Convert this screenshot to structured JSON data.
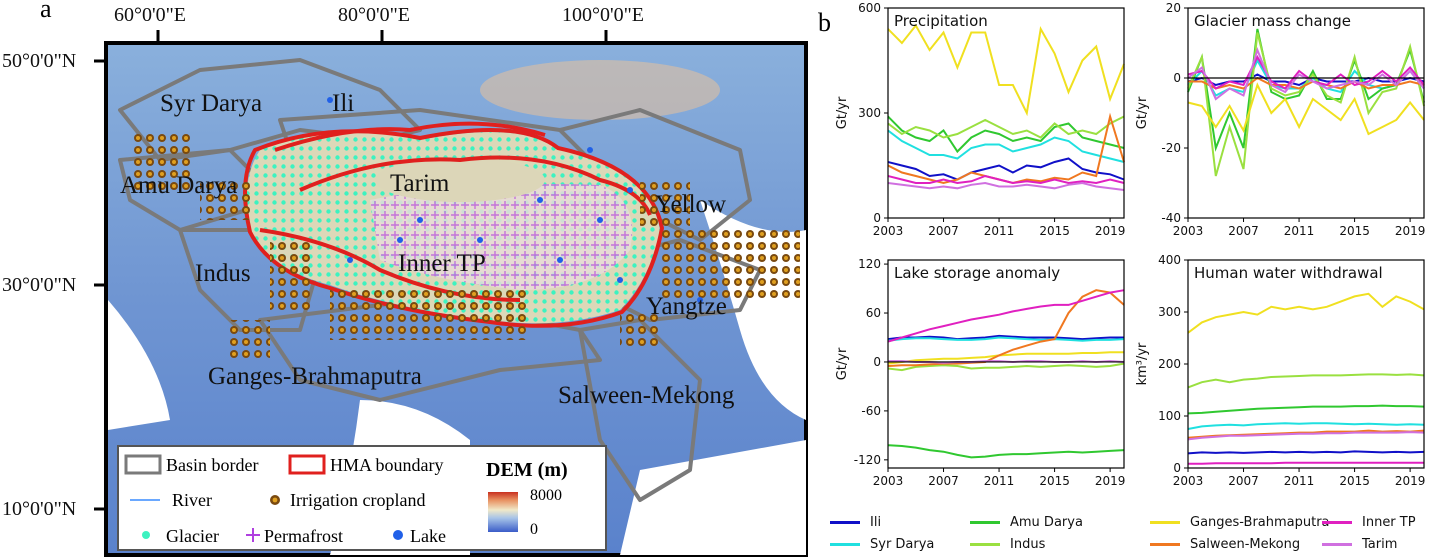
{
  "panel_labels": {
    "a": "a",
    "b": "b"
  },
  "map": {
    "lon_labels": [
      "60°0'0\"E",
      "80°0'0\"E",
      "100°0'0\"E"
    ],
    "lat_labels": [
      "50°0'0\"N",
      "30°0'0\"N",
      "10°0'0\"N"
    ],
    "basin_labels": [
      "Syr Darya",
      "Ili",
      "Amu Darya",
      "Tarim",
      "Yellow",
      "Indus",
      "Inner TP",
      "Yangtze",
      "Ganges-Brahmaputra",
      "Salween-Mekong"
    ],
    "legend": {
      "basin_border": "Basin border",
      "hma_boundary": "HMA boundary",
      "dem_title": "DEM (m)",
      "river": "River",
      "irrigation": "Irrigation cropland",
      "glacier": "Glacier",
      "permafrost": "Permafrost",
      "lake": "Lake",
      "dem_max": "8000",
      "dem_min": "0"
    },
    "colors": {
      "hma_boundary": "#e0201e",
      "basin_border": "#7a7a7a",
      "glacier": "#3df2c0",
      "permafrost": "#b040e0",
      "lake": "#2060e8",
      "river": "#6aa8ff"
    }
  },
  "series_colors": {
    "Ili": "#1010c8",
    "Syr Darya": "#20e0e0",
    "Amu Darya": "#30c830",
    "Indus": "#9ae040",
    "Ganges-Brahmaputra": "#f0e020",
    "Salween-Mekong": "#f07820",
    "Inner TP": "#e020c0",
    "Tarim": "#d070e0"
  },
  "legend_order": [
    "Ili",
    "Amu Darya",
    "Ganges-Brahmaputra",
    "Inner TP",
    "Syr Darya",
    "Indus",
    "Salween-Mekong",
    "Tarim"
  ],
  "chart_data": [
    {
      "type": "line",
      "title": "Precipitation",
      "ylabel": "Gt/yr",
      "ylim": [
        0,
        600
      ],
      "yticks": [
        0,
        300,
        600
      ],
      "xlim": [
        2003,
        2020
      ],
      "xticks": [
        2003,
        2007,
        2011,
        2015,
        2019
      ],
      "x": [
        2003,
        2004,
        2005,
        2006,
        2007,
        2008,
        2009,
        2010,
        2011,
        2012,
        2013,
        2014,
        2015,
        2016,
        2017,
        2018,
        2019,
        2020
      ],
      "series": [
        {
          "name": "Ili",
          "values": [
            160,
            150,
            140,
            120,
            125,
            110,
            130,
            140,
            150,
            130,
            150,
            145,
            160,
            170,
            140,
            130,
            125,
            110
          ]
        },
        {
          "name": "Syr Darya",
          "values": [
            250,
            220,
            200,
            180,
            180,
            170,
            200,
            210,
            210,
            190,
            200,
            210,
            230,
            220,
            190,
            180,
            170,
            160
          ]
        },
        {
          "name": "Amu Darya",
          "values": [
            290,
            250,
            230,
            220,
            250,
            190,
            230,
            250,
            240,
            220,
            230,
            220,
            260,
            270,
            230,
            220,
            210,
            200
          ]
        },
        {
          "name": "Indus",
          "values": [
            270,
            240,
            260,
            250,
            230,
            240,
            260,
            280,
            260,
            240,
            250,
            230,
            270,
            240,
            250,
            240,
            270,
            290
          ]
        },
        {
          "name": "Ganges-Brahmaputra",
          "values": [
            540,
            500,
            550,
            480,
            530,
            430,
            530,
            530,
            380,
            380,
            300,
            540,
            470,
            360,
            450,
            490,
            340,
            440
          ]
        },
        {
          "name": "Salween-Mekong",
          "values": [
            150,
            130,
            120,
            110,
            100,
            110,
            130,
            120,
            110,
            100,
            110,
            105,
            115,
            110,
            130,
            120,
            290,
            160
          ]
        },
        {
          "name": "Inner TP",
          "values": [
            120,
            110,
            100,
            100,
            110,
            100,
            105,
            120,
            110,
            100,
            105,
            100,
            110,
            100,
            105,
            100,
            110,
            100
          ]
        },
        {
          "name": "Tarim",
          "values": [
            100,
            95,
            90,
            85,
            90,
            85,
            95,
            100,
            90,
            90,
            95,
            90,
            85,
            95,
            100,
            90,
            85,
            80
          ]
        }
      ]
    },
    {
      "type": "line",
      "title": "Glacier mass change",
      "ylabel": "Gt/yr",
      "ylim": [
        -40,
        20
      ],
      "yticks": [
        -40,
        -20,
        0,
        20
      ],
      "xlim": [
        2003,
        2020
      ],
      "xticks": [
        2003,
        2007,
        2011,
        2015,
        2019
      ],
      "x": [
        2003,
        2004,
        2005,
        2006,
        2007,
        2008,
        2009,
        2010,
        2011,
        2012,
        2013,
        2014,
        2015,
        2016,
        2017,
        2018,
        2019,
        2020
      ],
      "series": [
        {
          "name": "Ili",
          "values": [
            -1,
            0,
            -2,
            -1,
            -1,
            1,
            -1,
            -1,
            -2,
            0,
            -1,
            -1,
            -1,
            0,
            -1,
            -1,
            0,
            -1
          ]
        },
        {
          "name": "Syr Darya",
          "values": [
            -2,
            2,
            -5,
            -3,
            -4,
            5,
            -2,
            -3,
            -3,
            0,
            -3,
            -4,
            2,
            -2,
            -3,
            -2,
            2,
            -3
          ]
        },
        {
          "name": "Amu Darya",
          "values": [
            -4,
            6,
            -20,
            -10,
            -20,
            14,
            -4,
            -6,
            -5,
            2,
            -6,
            -6,
            5,
            -6,
            -3,
            -2,
            8,
            -7
          ]
        },
        {
          "name": "Indus",
          "values": [
            -3,
            6,
            -28,
            -14,
            -26,
            13,
            -3,
            -5,
            -4,
            1,
            -5,
            -7,
            6,
            -10,
            -4,
            -3,
            9,
            -8
          ]
        },
        {
          "name": "Ganges-Brahmaputra",
          "values": [
            -7,
            -8,
            -14,
            -8,
            -15,
            -2,
            -10,
            -6,
            -14,
            -6,
            -9,
            -12,
            -6,
            -16,
            -14,
            -12,
            -7,
            -12
          ]
        },
        {
          "name": "Salween-Mekong",
          "values": [
            -1,
            -1,
            -3,
            -2,
            -3,
            0,
            -2,
            -2,
            -3,
            -1,
            -2,
            -3,
            -1,
            -3,
            -2,
            -2,
            -1,
            -2
          ]
        },
        {
          "name": "Inner TP",
          "values": [
            1,
            2,
            -3,
            -1,
            -2,
            6,
            -1,
            -3,
            2,
            -1,
            -2,
            1,
            -2,
            -1,
            2,
            -1,
            3,
            -2
          ]
        },
        {
          "name": "Tarim",
          "values": [
            0,
            3,
            -6,
            -3,
            -5,
            8,
            -2,
            -4,
            1,
            -1,
            -3,
            -2,
            -1,
            -2,
            1,
            -2,
            2,
            -3
          ]
        }
      ]
    },
    {
      "type": "line",
      "title": "Lake storage anomaly",
      "ylabel": "Gt/yr",
      "ylim": [
        -130,
        125
      ],
      "yticks": [
        -120,
        -60,
        0,
        60,
        120
      ],
      "xlim": [
        2003,
        2020
      ],
      "xticks": [
        2003,
        2007,
        2011,
        2015,
        2019
      ],
      "x": [
        2003,
        2004,
        2005,
        2006,
        2007,
        2008,
        2009,
        2010,
        2011,
        2012,
        2013,
        2014,
        2015,
        2016,
        2017,
        2018,
        2019,
        2020
      ],
      "series": [
        {
          "name": "Ili",
          "values": [
            28,
            30,
            30,
            31,
            30,
            28,
            29,
            30,
            32,
            31,
            30,
            30,
            30,
            29,
            28,
            29,
            30,
            30
          ]
        },
        {
          "name": "Syr Darya",
          "values": [
            26,
            28,
            29,
            29,
            28,
            27,
            27,
            28,
            30,
            29,
            28,
            27,
            28,
            27,
            26,
            27,
            27,
            28
          ]
        },
        {
          "name": "Amu Darya",
          "values": [
            -102,
            -103,
            -105,
            -108,
            -110,
            -114,
            -117,
            -116,
            -114,
            -113,
            -113,
            -112,
            -111,
            -110,
            -111,
            -110,
            -109,
            -108
          ]
        },
        {
          "name": "Indus",
          "values": [
            -8,
            -10,
            -6,
            -5,
            -4,
            -5,
            -8,
            -7,
            -7,
            -6,
            -5,
            -6,
            -5,
            -4,
            -5,
            -6,
            -5,
            -2
          ]
        },
        {
          "name": "Ganges-Brahmaputra",
          "values": [
            -2,
            0,
            2,
            3,
            4,
            4,
            5,
            6,
            8,
            9,
            10,
            10,
            10,
            10,
            11,
            11,
            12,
            12
          ]
        },
        {
          "name": "Salween-Mekong",
          "values": [
            -5,
            -4,
            -4,
            -3,
            -2,
            -2,
            -1,
            0,
            8,
            15,
            20,
            25,
            28,
            60,
            80,
            88,
            85,
            70
          ]
        },
        {
          "name": "Inner TP",
          "values": [
            25,
            30,
            35,
            40,
            44,
            48,
            52,
            55,
            58,
            62,
            65,
            68,
            70,
            70,
            75,
            80,
            85,
            88
          ]
        },
        {
          "name": "Tarim",
          "values": [
            1,
            1,
            0,
            0,
            -1,
            0,
            0,
            1,
            1,
            0,
            1,
            1,
            0,
            0,
            1,
            0,
            1,
            0
          ]
        }
      ]
    },
    {
      "type": "line",
      "title": "Human water withdrawal",
      "ylabel": "km³/yr",
      "ylim": [
        0,
        400
      ],
      "yticks": [
        0,
        100,
        200,
        300,
        400
      ],
      "xlim": [
        2003,
        2020
      ],
      "xticks": [
        2003,
        2007,
        2011,
        2015,
        2019
      ],
      "x": [
        2003,
        2004,
        2005,
        2006,
        2007,
        2008,
        2009,
        2010,
        2011,
        2012,
        2013,
        2014,
        2015,
        2016,
        2017,
        2018,
        2019,
        2020
      ],
      "series": [
        {
          "name": "Ili",
          "values": [
            28,
            30,
            29,
            30,
            29,
            30,
            31,
            30,
            31,
            30,
            31,
            30,
            32,
            31,
            30,
            31,
            30,
            31
          ]
        },
        {
          "name": "Syr Darya",
          "values": [
            75,
            80,
            82,
            83,
            82,
            84,
            85,
            86,
            85,
            86,
            86,
            85,
            84,
            85,
            84,
            83,
            84,
            83
          ]
        },
        {
          "name": "Amu Darya",
          "values": [
            105,
            106,
            108,
            110,
            112,
            114,
            115,
            116,
            117,
            118,
            118,
            118,
            119,
            119,
            120,
            119,
            119,
            118
          ]
        },
        {
          "name": "Indus",
          "values": [
            155,
            165,
            170,
            165,
            170,
            172,
            175,
            176,
            177,
            178,
            178,
            178,
            179,
            180,
            180,
            179,
            180,
            178
          ]
        },
        {
          "name": "Ganges-Brahmaputra",
          "values": [
            260,
            280,
            290,
            295,
            300,
            295,
            310,
            305,
            310,
            305,
            310,
            320,
            330,
            335,
            310,
            330,
            320,
            305
          ]
        },
        {
          "name": "Salween-Mekong",
          "values": [
            58,
            60,
            62,
            63,
            64,
            65,
            66,
            67,
            68,
            68,
            70,
            70,
            70,
            72,
            70,
            71,
            70,
            72
          ]
        },
        {
          "name": "Inner TP",
          "values": [
            8,
            8,
            9,
            9,
            9,
            9,
            9,
            10,
            10,
            10,
            10,
            10,
            10,
            10,
            10,
            10,
            10,
            10
          ]
        },
        {
          "name": "Tarim",
          "values": [
            55,
            58,
            60,
            62,
            62,
            63,
            64,
            65,
            66,
            66,
            67,
            67,
            68,
            68,
            68,
            68,
            69,
            68
          ]
        }
      ]
    }
  ]
}
